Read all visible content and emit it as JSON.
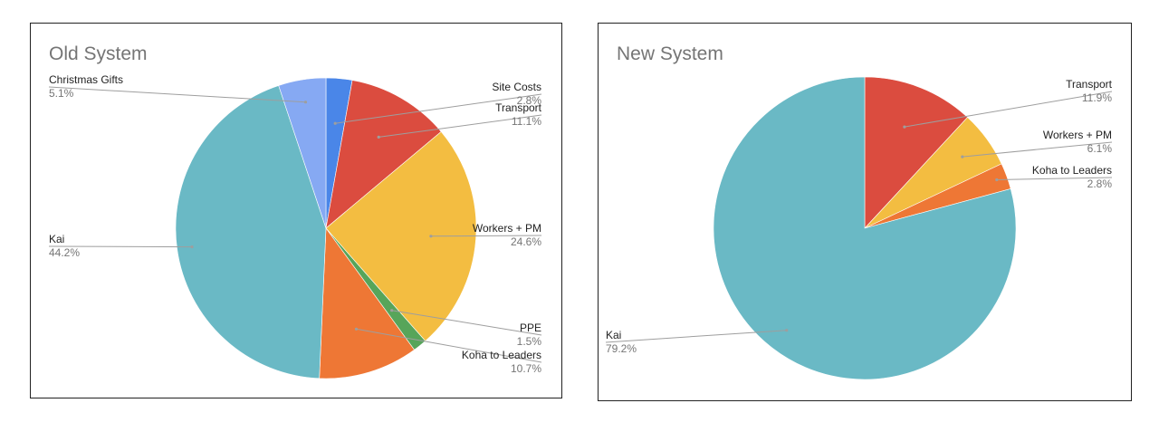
{
  "chart_data": [
    {
      "type": "pie",
      "title": "Old System",
      "slices": [
        {
          "label": "Site Costs",
          "value": 2.8,
          "pct_label": "2.8%",
          "color": "#4a86e8"
        },
        {
          "label": "Transport",
          "value": 11.1,
          "pct_label": "11.1%",
          "color": "#db4c3f"
        },
        {
          "label": "Workers + PM",
          "value": 24.6,
          "pct_label": "24.6%",
          "color": "#f3bd41"
        },
        {
          "label": "PPE",
          "value": 1.5,
          "pct_label": "1.5%",
          "color": "#57a55a"
        },
        {
          "label": "Koha to Leaders",
          "value": 10.7,
          "pct_label": "10.7%",
          "color": "#ee7735"
        },
        {
          "label": "Kai",
          "value": 44.2,
          "pct_label": "44.2%",
          "color": "#6ab9c5"
        },
        {
          "label": "Christmas Gifts",
          "value": 5.1,
          "pct_label": "5.1%",
          "color": "#86a9f3"
        }
      ],
      "legend": "none"
    },
    {
      "type": "pie",
      "title": "New System",
      "slices": [
        {
          "label": "Transport",
          "value": 11.9,
          "pct_label": "11.9%",
          "color": "#db4c3f"
        },
        {
          "label": "Workers + PM",
          "value": 6.1,
          "pct_label": "6.1%",
          "color": "#f3bd41"
        },
        {
          "label": "Koha to Leaders",
          "value": 2.8,
          "pct_label": "2.8%",
          "color": "#ee7735"
        },
        {
          "label": "Kai",
          "value": 79.2,
          "pct_label": "79.2%",
          "color": "#6ab9c5"
        }
      ],
      "legend": "none"
    }
  ]
}
